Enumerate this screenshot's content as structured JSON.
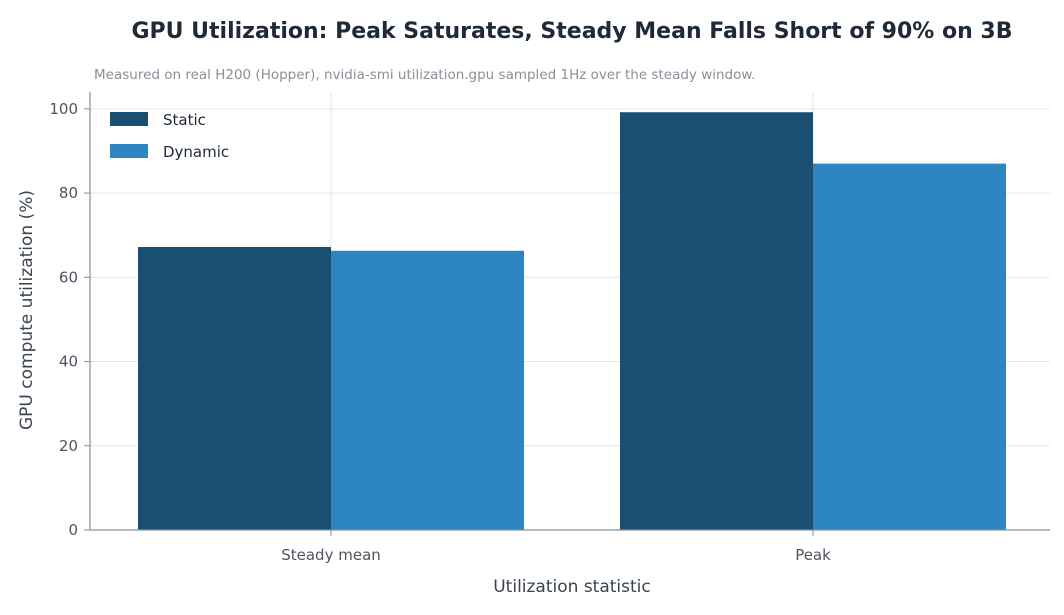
{
  "chart_data": {
    "type": "bar",
    "title": "GPU Utilization: Peak Saturates, Steady Mean Falls Short of 90% on 3B",
    "subtitle": "Measured on real H200 (Hopper), nvidia-smi utilization.gpu sampled 1Hz over the steady window.",
    "xlabel": "Utilization statistic",
    "ylabel": "GPU compute utilization (%)",
    "categories": [
      "Steady mean",
      "Peak"
    ],
    "series": [
      {
        "name": "Static",
        "color": "#1b4f72",
        "values": [
          67.2,
          99.2
        ]
      },
      {
        "name": "Dynamic",
        "color": "#2e86c1",
        "values": [
          66.3,
          87.0
        ]
      }
    ],
    "ylim": [
      0,
      104
    ],
    "yticks": [
      0,
      20,
      40,
      60,
      80,
      100
    ],
    "grid": true,
    "legend_position": "top-left"
  }
}
